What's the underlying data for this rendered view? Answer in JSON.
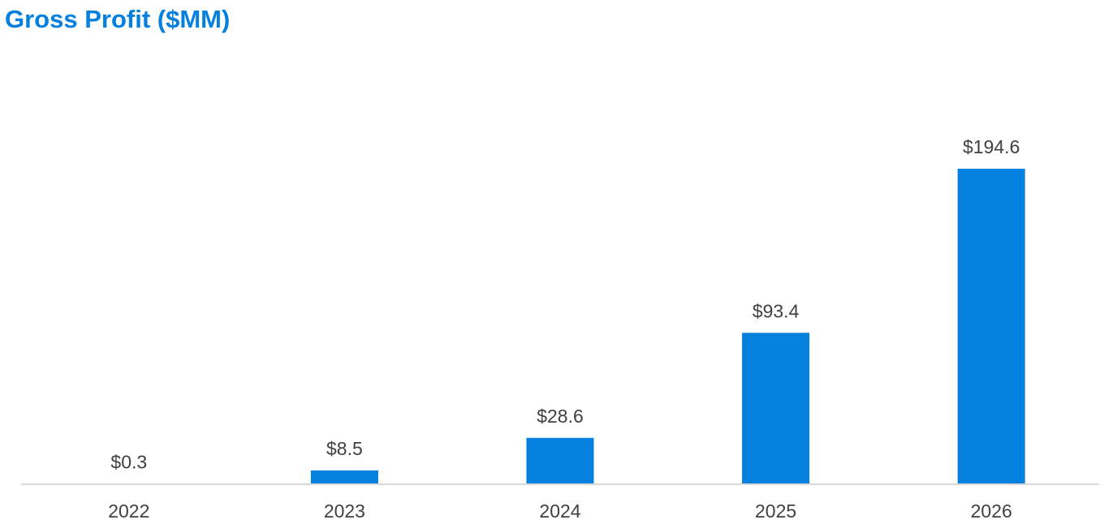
{
  "chart_data": {
    "type": "bar",
    "title": "Gross Profit ($MM)",
    "xlabel": "",
    "ylabel": "",
    "categories": [
      "2022",
      "2023",
      "2024",
      "2025",
      "2026"
    ],
    "values": [
      0.3,
      8.5,
      28.6,
      93.4,
      194.6
    ],
    "data_labels": [
      "$0.3",
      "$8.5",
      "$28.6",
      "$93.4",
      "$194.6"
    ],
    "ylim": [
      0,
      194.6
    ],
    "y_axis_visible": false,
    "grid": false,
    "legend": "none"
  },
  "colors": {
    "title": "#0481df",
    "bar": "#0481df",
    "axis_line": "#d9d9d9",
    "label_text": "#404040"
  }
}
